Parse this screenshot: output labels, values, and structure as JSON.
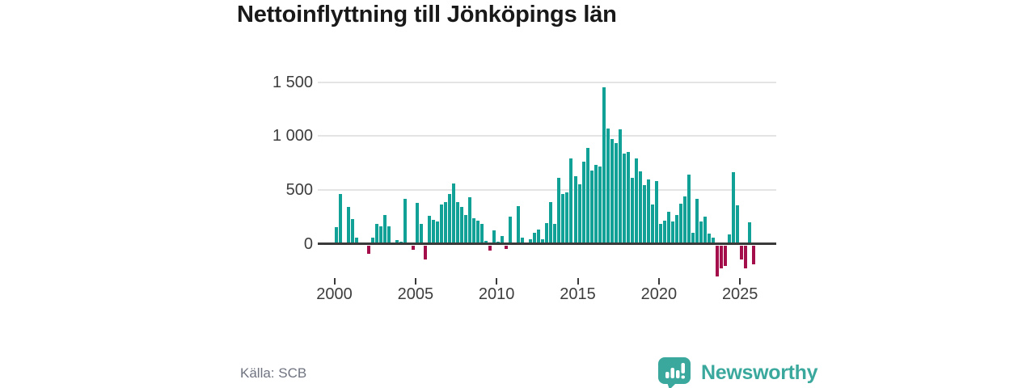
{
  "title": "Nettoinflyttning till Jönköpings län",
  "source": "Källa: SCB",
  "brand": {
    "name": "Newsworthy",
    "color": "#3aa89d"
  },
  "colors": {
    "positive_bar": "#12a197",
    "negative_bar": "#a30e4b",
    "gridline": "#e4e4e4",
    "axis": "#3a3a3a",
    "title_text": "#191919",
    "tick_text": "#3d3d3d",
    "source_text": "#6f7480"
  },
  "chart_data": {
    "type": "bar",
    "title": "Nettoinflyttning till Jönköpings län",
    "xlabel": "",
    "ylabel": "",
    "frequency": "quarterly",
    "x_start": {
      "year": 2000,
      "quarter": 1
    },
    "x_end": {
      "year": 2025,
      "quarter": 4
    },
    "values": [
      155,
      460,
      10,
      345,
      230,
      55,
      5,
      15,
      -75,
      60,
      185,
      160,
      270,
      165,
      15,
      35,
      20,
      420,
      10,
      -35,
      380,
      185,
      -125,
      260,
      225,
      205,
      365,
      385,
      465,
      560,
      390,
      340,
      270,
      435,
      240,
      215,
      185,
      30,
      -45,
      125,
      20,
      75,
      -30,
      255,
      0,
      350,
      60,
      5,
      45,
      100,
      135,
      45,
      195,
      390,
      185,
      615,
      460,
      475,
      790,
      625,
      550,
      760,
      890,
      680,
      730,
      715,
      1450,
      1070,
      975,
      935,
      1060,
      835,
      850,
      610,
      795,
      675,
      545,
      600,
      365,
      585,
      185,
      215,
      295,
      205,
      270,
      375,
      440,
      640,
      100,
      415,
      205,
      255,
      95,
      55,
      -285,
      -210,
      -190,
      85,
      665,
      355,
      -130,
      -210,
      200,
      -170
    ],
    "x_tick_years": [
      "2000",
      "2005",
      "2010",
      "2015",
      "2020",
      "2025"
    ],
    "y_ticks": [
      0,
      500,
      1000,
      1500
    ],
    "y_tick_labels": [
      "0",
      "500",
      "1 000",
      "1 500"
    ],
    "ylim": [
      -350,
      1500
    ],
    "grid": "horizontal",
    "legend": "none"
  }
}
